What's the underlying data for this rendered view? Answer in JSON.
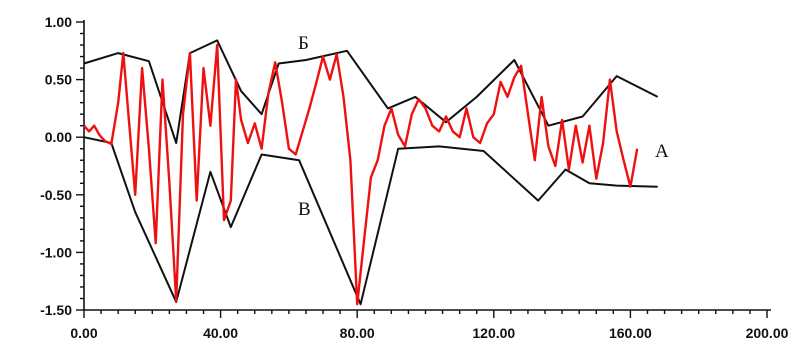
{
  "chart_data": {
    "type": "line",
    "title": "",
    "xlabel": "",
    "ylabel": "",
    "xlim": [
      0,
      200
    ],
    "ylim": [
      -1.5,
      1.0
    ],
    "x_ticks": [
      "0.00",
      "40.00",
      "80.00",
      "120.00",
      "160.00",
      "200.00"
    ],
    "y_ticks": [
      "1.00",
      "0.50",
      "0.00",
      "-0.50",
      "-1.00",
      "-1.50"
    ],
    "grid": false,
    "legend": "none",
    "series": [
      {
        "name": "А",
        "color": "#ee1111",
        "x": [
          0,
          1.5,
          3,
          4.5,
          6,
          8,
          10,
          11.5,
          13,
          15,
          17,
          19,
          21,
          23,
          25,
          27,
          29,
          31,
          33,
          35,
          37,
          39,
          41,
          43,
          44.5,
          46,
          48,
          50,
          52,
          54,
          56,
          58,
          60,
          62,
          64,
          66,
          68,
          70,
          72,
          74,
          76,
          78,
          80,
          82,
          84,
          86,
          88,
          90,
          92,
          94,
          96,
          98,
          100,
          102,
          104,
          106,
          108,
          110,
          112,
          114,
          116,
          118,
          120,
          122,
          124,
          126,
          128,
          130,
          132,
          134,
          136,
          138,
          140,
          142,
          144,
          146,
          148,
          150,
          152,
          154,
          156,
          158,
          160,
          162
        ],
        "values": [
          0.1,
          0.05,
          0.1,
          0.02,
          -0.03,
          -0.06,
          0.3,
          0.73,
          0.2,
          -0.5,
          0.6,
          -0.1,
          -0.92,
          0.5,
          -0.4,
          -1.42,
          0.2,
          0.73,
          -0.55,
          0.6,
          0.1,
          0.8,
          -0.72,
          -0.55,
          0.5,
          0.15,
          -0.05,
          0.12,
          -0.1,
          0.38,
          0.65,
          0.3,
          -0.1,
          -0.15,
          0.05,
          0.25,
          0.47,
          0.7,
          0.5,
          0.72,
          0.35,
          -0.2,
          -1.45,
          -0.9,
          -0.35,
          -0.2,
          0.1,
          0.25,
          0.02,
          -0.08,
          0.2,
          0.33,
          0.25,
          0.1,
          0.05,
          0.18,
          0.05,
          0.0,
          0.25,
          0.0,
          -0.05,
          0.12,
          0.2,
          0.48,
          0.35,
          0.52,
          0.62,
          0.2,
          -0.2,
          0.35,
          -0.08,
          -0.25,
          0.15,
          -0.28,
          0.1,
          -0.22,
          0.1,
          -0.36,
          -0.05,
          0.5,
          0.05,
          -0.2,
          -0.43,
          -0.1
        ]
      },
      {
        "name": "Б",
        "color": "#111111",
        "x": [
          0,
          10,
          19,
          27,
          31,
          39,
          46,
          52,
          57,
          65,
          77,
          89,
          97,
          106,
          115,
          126,
          136,
          146,
          156,
          168
        ],
        "values": [
          0.64,
          0.73,
          0.66,
          -0.05,
          0.73,
          0.84,
          0.4,
          0.2,
          0.64,
          0.67,
          0.75,
          0.25,
          0.35,
          0.13,
          0.35,
          0.67,
          0.1,
          0.18,
          0.53,
          0.35
        ]
      },
      {
        "name": "В",
        "color": "#111111",
        "x": [
          0,
          8,
          15,
          27,
          37,
          43,
          52,
          63,
          81,
          92,
          104,
          117,
          133,
          141,
          148,
          156,
          168
        ],
        "values": [
          0.0,
          -0.05,
          -0.65,
          -1.43,
          -0.3,
          -0.78,
          -0.15,
          -0.2,
          -1.45,
          -0.1,
          -0.08,
          -0.12,
          -0.55,
          -0.28,
          -0.4,
          -0.42,
          -0.43
        ]
      }
    ]
  }
}
